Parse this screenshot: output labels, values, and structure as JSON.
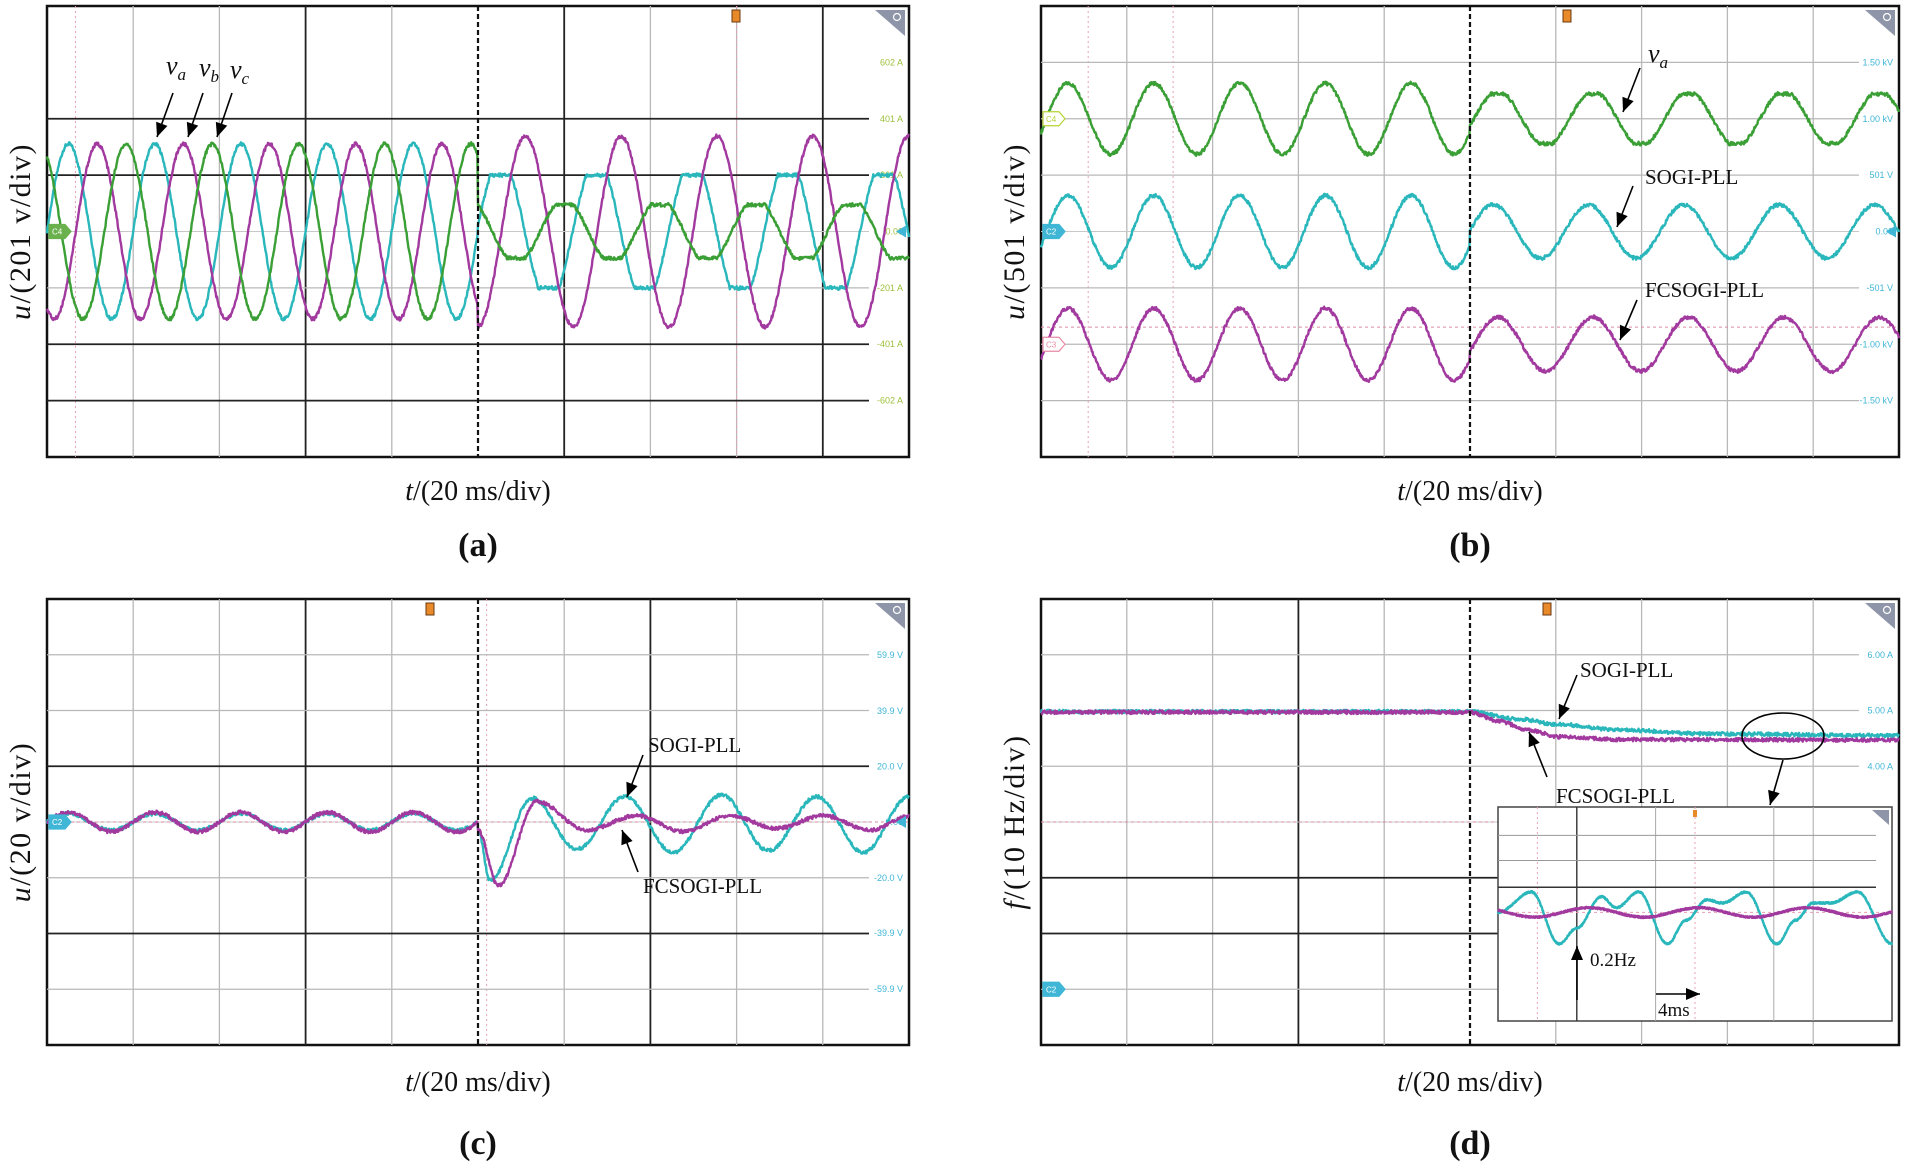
{
  "chart_data": [
    {
      "panel_label": "(a)",
      "type": "line",
      "xlabel": {
        "symbol": "t",
        "unit": "/(20 ms/div)"
      },
      "ylabel": {
        "symbol": "u",
        "unit": "/(201 v/div)"
      },
      "x_unit": "ms",
      "xlim": [
        0,
        200
      ],
      "ylim": [
        -804,
        804
      ],
      "grid": true,
      "trigger_ms": 100,
      "tick_color": "#9cc03a",
      "right_ticks": [
        {
          "value": 602,
          "label": "602 A"
        },
        {
          "value": 401,
          "label": "401 A"
        },
        {
          "value": 201,
          "label": "201 A"
        },
        {
          "value": 0,
          "label": "0.00"
        },
        {
          "value": -201,
          "label": "-201 A"
        },
        {
          "value": -401,
          "label": "-401 A"
        },
        {
          "value": -602,
          "label": "-602 A"
        }
      ],
      "channel_markers": [
        {
          "label": "C4",
          "value": 0,
          "color": "#6ab04c",
          "filled": true
        }
      ],
      "series": [
        {
          "name": "va",
          "color": "#2ab7bb",
          "segments": [
            {
              "t": [
                0,
                100
              ],
              "type": "sine",
              "offset": 0,
              "amplitude": 312,
              "freq_hz": 50,
              "peak_ms": 5
            },
            {
              "t": [
                100,
                200
              ],
              "type": "sine",
              "offset": 0,
              "amplitude": 260,
              "freq_hz": 45,
              "peak_ms": 105.3,
              "clip": 201
            }
          ]
        },
        {
          "name": "vb",
          "color": "#a2399f",
          "segments": [
            {
              "t": [
                0,
                100
              ],
              "type": "sine",
              "offset": 0,
              "amplitude": 312,
              "freq_hz": 50,
              "peak_ms": 11.67
            },
            {
              "t": [
                100,
                200
              ],
              "type": "sine",
              "offset": 0,
              "amplitude": 340,
              "freq_hz": 45,
              "peak_ms": 111
            }
          ]
        },
        {
          "name": "vc",
          "color": "#3a9f35",
          "segments": [
            {
              "t": [
                0,
                100
              ],
              "type": "sine",
              "offset": 0,
              "amplitude": 312,
              "freq_hz": 50,
              "peak_ms": 18.33
            },
            {
              "t": [
                100,
                200
              ],
              "type": "sine",
              "offset": 0,
              "amplitude": 115,
              "freq_hz": 45,
              "peak_ms": 120,
              "clip": 95
            }
          ]
        }
      ],
      "annotations": [
        {
          "symbol": "v",
          "sub": "a"
        },
        {
          "symbol": "v",
          "sub": "b"
        },
        {
          "symbol": "v",
          "sub": "c"
        }
      ]
    },
    {
      "panel_label": "(b)",
      "type": "line",
      "xlabel": {
        "symbol": "t",
        "unit": "/(20 ms/div)"
      },
      "ylabel": {
        "symbol": "u",
        "unit": "/(501 v/div)"
      },
      "x_unit": "ms",
      "xlim": [
        0,
        200
      ],
      "ylim": [
        -2004,
        2004
      ],
      "grid": true,
      "trigger_ms": 100,
      "tick_color": "#3fb6d6",
      "right_ticks": [
        {
          "value": 1500,
          "label": "1.50 kV"
        },
        {
          "value": 1002,
          "label": "1.00 kV"
        },
        {
          "value": 501,
          "label": "501 V"
        },
        {
          "value": 0,
          "label": "0.00"
        },
        {
          "value": -501,
          "label": "-501 V"
        },
        {
          "value": -1002,
          "label": "-1.00 kV"
        },
        {
          "value": -1500,
          "label": "-1.50 kV"
        }
      ],
      "channel_markers": [
        {
          "label": "C4",
          "value": 1002,
          "color": "#b5d335",
          "filled": false
        },
        {
          "label": "C2",
          "value": 0,
          "color": "#3fb6d6",
          "filled": true
        },
        {
          "label": "C3",
          "value": -1002,
          "color": "#e88aa6",
          "filled": false
        }
      ],
      "series": [
        {
          "name": "va",
          "color": "#3a9f35",
          "segments": [
            {
              "t": [
                0,
                100
              ],
              "type": "sine",
              "offset": 1002,
              "amplitude": 315,
              "freq_hz": 50,
              "peak_ms": 6.3
            },
            {
              "t": [
                100,
                200
              ],
              "type": "sine",
              "offset": 1002,
              "amplitude": 245,
              "freq_hz": 45,
              "peak_ms": 106.5,
              "clip": 220
            }
          ]
        },
        {
          "name": "SOGI-PLL",
          "color": "#2ab7bb",
          "segments": [
            {
              "t": [
                0,
                100
              ],
              "type": "sine",
              "offset": 0,
              "amplitude": 320,
              "freq_hz": 50,
              "peak_ms": 6.3
            },
            {
              "t": [
                100,
                200
              ],
              "type": "sine",
              "offset": 0,
              "amplitude": 237,
              "freq_hz": 45,
              "peak_ms": 105.4
            }
          ]
        },
        {
          "name": "FCSOGI-PLL",
          "color": "#a2399f",
          "segments": [
            {
              "t": [
                0,
                100
              ],
              "type": "sine",
              "offset": -1002,
              "amplitude": 320,
              "freq_hz": 50,
              "peak_ms": 6.3
            },
            {
              "t": [
                100,
                200
              ],
              "type": "sine",
              "offset": -1002,
              "amplitude": 240,
              "freq_hz": 45,
              "peak_ms": 106.5
            }
          ]
        }
      ],
      "annotations": [
        {
          "symbol": "v",
          "sub": "a"
        },
        {
          "text": "SOGI-PLL"
        },
        {
          "text": "FCSOGI-PLL"
        }
      ]
    },
    {
      "panel_label": "(c)",
      "type": "line",
      "xlabel": {
        "symbol": "t",
        "unit": "/(20 ms/div)"
      },
      "ylabel": {
        "symbol": "u",
        "unit": "/(20 v/div)"
      },
      "x_unit": "ms",
      "xlim": [
        0,
        200
      ],
      "ylim": [
        -80,
        80
      ],
      "grid": true,
      "trigger_ms": 100,
      "tick_color": "#3fb6d6",
      "right_ticks": [
        {
          "value": 59.9,
          "label": "59.9 V"
        },
        {
          "value": 39.9,
          "label": "39.9 V"
        },
        {
          "value": 20,
          "label": "20.0 V"
        },
        {
          "value": 0,
          "label": "0.00"
        },
        {
          "value": -20,
          "label": "-20.0 V"
        },
        {
          "value": -39.9,
          "label": "-39.9 V"
        },
        {
          "value": -59.9,
          "label": "-59.9 V"
        }
      ],
      "channel_markers": [
        {
          "label": "C2",
          "value": 0,
          "color": "#3fb6d6",
          "filled": true
        }
      ],
      "series": [
        {
          "name": "SOGI-PLL",
          "color": "#2ab7bb",
          "segments": [
            {
              "t": [
                0,
                100
              ],
              "type": "sine",
              "offset": 0,
              "amplitude": 3,
              "freq_hz": 50,
              "peak_ms": 5
            },
            {
              "t": [
                100,
                200
              ],
              "type": "points",
              "points": [
                [
                  100,
                  -3
                ],
                [
                  102.8,
                  -21
                ],
                [
                  112.5,
                  8.6
                ],
                [
                  122.9,
                  -9.7
                ],
                [
                  134.1,
                  9.1
                ],
                [
                  145.3,
                  -10.9
                ],
                [
                  156.5,
                  9.7
                ],
                [
                  167.4,
                  -10.3
                ],
                [
                  178.6,
                  9.1
                ],
                [
                  189.4,
                  -10.9
                ],
                [
                  200,
                  9
                ]
              ]
            }
          ]
        },
        {
          "name": "FCSOGI-PLL",
          "color": "#a2399f",
          "segments": [
            {
              "t": [
                0,
                100
              ],
              "type": "sine",
              "offset": 0,
              "amplitude": 3.5,
              "freq_hz": 50,
              "peak_ms": 5
            },
            {
              "t": [
                100,
                200
              ],
              "type": "points",
              "points": [
                [
                  100,
                  -3
                ],
                [
                  104.7,
                  -22.9
                ],
                [
                  113.6,
                  7.4
                ],
                [
                  125.2,
                  -2.9
                ],
                [
                  136.8,
                  2.3
                ],
                [
                  147.6,
                  -3.4
                ],
                [
                  158.5,
                  2.3
                ],
                [
                  169.3,
                  -2.3
                ],
                [
                  180.1,
                  2.3
                ],
                [
                  191,
                  -2.9
                ],
                [
                  200,
                  2
                ]
              ]
            }
          ]
        }
      ],
      "annotations": [
        {
          "text": "SOGI-PLL"
        },
        {
          "text": "FCSOGI-PLL"
        }
      ]
    },
    {
      "panel_label": "(d)",
      "type": "line",
      "xlabel": {
        "symbol": "t",
        "unit": "/(20 ms/div)"
      },
      "ylabel": {
        "symbol": "f",
        "unit": "/(10 Hz/div)"
      },
      "x_unit": "ms",
      "xlim": [
        0,
        200
      ],
      "ylim": [
        -1,
        7
      ],
      "grid": true,
      "trigger_ms": 100,
      "tick_color": "#3fb6d6",
      "right_ticks": [
        {
          "value": 6,
          "label": "6.00 A"
        },
        {
          "value": 5,
          "label": "5.00 A"
        },
        {
          "value": 4,
          "label": "4.00 A"
        }
      ],
      "channel_markers": [
        {
          "label": "C2",
          "value": 0,
          "color": "#3fb6d6",
          "filled": true
        }
      ],
      "series": [
        {
          "name": "SOGI-PLL",
          "color": "#2ab7bb",
          "segments": [
            {
              "t": [
                0,
                200
              ],
              "type": "points",
              "points": [
                [
                  0,
                  4.98
                ],
                [
                  100,
                  4.98
                ],
                [
                  110.9,
                  4.85
                ],
                [
                  120.7,
                  4.75
                ],
                [
                  135,
                  4.65
                ],
                [
                  156,
                  4.58
                ],
                [
                  200,
                  4.55
                ]
              ]
            }
          ]
        },
        {
          "name": "FCSOGI-PLL",
          "color": "#a2399f",
          "segments": [
            {
              "t": [
                0,
                200
              ],
              "type": "points",
              "points": [
                [
                  0,
                  4.97
                ],
                [
                  100,
                  4.97
                ],
                [
                  106.5,
                  4.81
                ],
                [
                  113.7,
                  4.65
                ],
                [
                  120.7,
                  4.53
                ],
                [
                  135,
                  4.48
                ],
                [
                  200,
                  4.47
                ]
              ]
            }
          ]
        }
      ],
      "annotations": [
        {
          "text": "SOGI-PLL"
        },
        {
          "text": "FCSOGI-PLL"
        }
      ],
      "inset": {
        "type": "line",
        "x_unit": "ms",
        "xlim": [
          0,
          40
        ],
        "y_unit": "Hz",
        "ylim": [
          -0.69,
          0.67
        ],
        "series": [
          {
            "name": "SOGI-PLL",
            "color": "#2ab7bb",
            "segments": [
              {
                "t": [
                  0,
                  40
                ],
                "type": "points",
                "points": [
                  [
                    0,
                    0
                  ],
                  [
                    3.4,
                    0.13
                  ],
                  [
                    6.2,
                    -0.2
                  ],
                  [
                    8,
                    -0.1
                  ],
                  [
                    10.5,
                    0.1
                  ],
                  [
                    12,
                    0.03
                  ],
                  [
                    14.3,
                    0.13
                  ],
                  [
                    17.2,
                    -0.2
                  ],
                  [
                    19.1,
                    -0.05
                  ],
                  [
                    21.2,
                    0.08
                  ],
                  [
                    22.8,
                    0.06
                  ],
                  [
                    25.2,
                    0.13
                  ],
                  [
                    28.3,
                    -0.2
                  ],
                  [
                    30.2,
                    -0.05
                  ],
                  [
                    32,
                    0.06
                  ],
                  [
                    33.8,
                    0.06
                  ],
                  [
                    36.5,
                    0.13
                  ],
                  [
                    40,
                    -0.2
                  ]
                ]
              }
            ]
          },
          {
            "name": "FCSOGI-PLL",
            "color": "#a2399f",
            "segments": [
              {
                "t": [
                  0,
                  40
                ],
                "type": "sine",
                "offset": 0,
                "amplitude": 0.03,
                "freq_hz": 90,
                "peak_ms": 9.25
              }
            ]
          }
        ],
        "annotations": [
          {
            "text": "0.2Hz"
          },
          {
            "text": "4ms"
          }
        ]
      }
    }
  ]
}
